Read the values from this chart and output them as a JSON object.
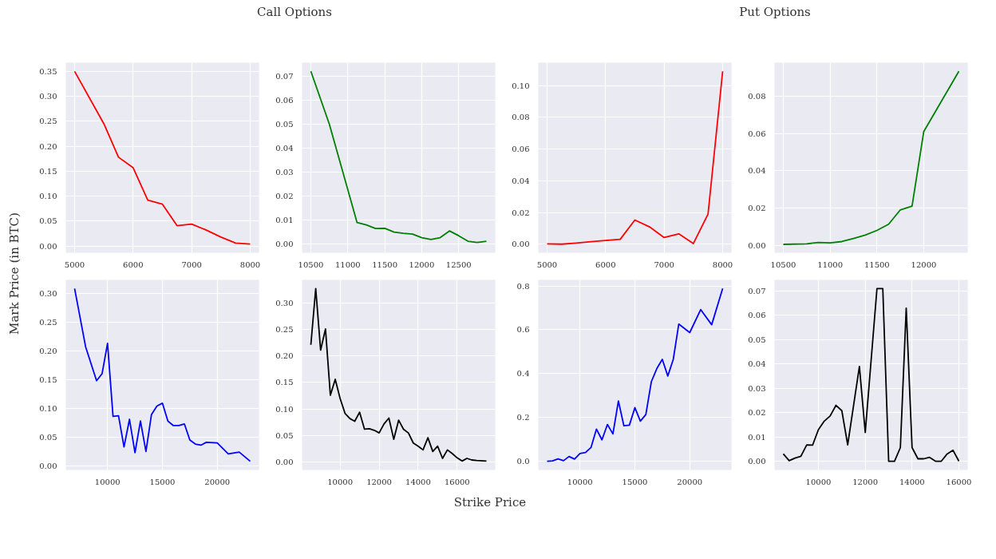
{
  "chart_data": [
    {
      "type": "line",
      "annotations": [
        "Call Options"
      ],
      "ylabel": "Mark Price (in BTC)",
      "grid": true,
      "x": [
        5000,
        5500,
        5750,
        6000,
        6250,
        6500,
        6750,
        7000,
        7250,
        7500,
        7750,
        8000
      ],
      "series": [
        {
          "color": "#ff0000",
          "values": [
            0.35,
            0.245,
            0.178,
            0.157,
            0.092,
            0.084,
            0.041,
            0.044,
            0.032,
            0.018,
            0.006,
            0.004
          ]
        }
      ],
      "xlim": [
        4850,
        8150
      ],
      "xticks": [
        5000,
        6000,
        7000,
        8000
      ],
      "ylim": [
        -0.0133,
        0.3673
      ],
      "yticks": [
        {
          "value": 0,
          "label": "0.00"
        },
        {
          "value": 0.05,
          "label": "0.05"
        },
        {
          "value": 0.1,
          "label": "0.10"
        },
        {
          "value": 0.15,
          "label": "0.15"
        },
        {
          "value": 0.2,
          "label": "0.20"
        },
        {
          "value": 0.25,
          "label": "0.25"
        },
        {
          "value": 0.3,
          "label": "0.30"
        },
        {
          "value": 0.35,
          "label": "0.35"
        }
      ]
    },
    {
      "type": "line",
      "grid": true,
      "x": [
        10500,
        10750,
        11125,
        11250,
        11375,
        11500,
        11625,
        11750,
        11875,
        12000,
        12125,
        12250,
        12375,
        12500,
        12625,
        12750,
        12875
      ],
      "series": [
        {
          "color": "#008000",
          "values": [
            0.072,
            0.05,
            0.009,
            0.008,
            0.0065,
            0.0066,
            0.005,
            0.0045,
            0.0042,
            0.0027,
            0.0019,
            0.0027,
            0.0055,
            0.0035,
            0.0012,
            0.0007,
            0.0012
          ]
        }
      ],
      "xlim": [
        10381,
        12994
      ],
      "xticks": [
        10500,
        11000,
        11500,
        12000,
        12500
      ],
      "ylim": [
        -0.0036,
        0.0756
      ],
      "yticks": [
        {
          "value": 0,
          "label": "0.00"
        },
        {
          "value": 0.01,
          "label": "0.01"
        },
        {
          "value": 0.02,
          "label": "0.02"
        },
        {
          "value": 0.03,
          "label": "0.03"
        },
        {
          "value": 0.04,
          "label": "0.04"
        },
        {
          "value": 0.05,
          "label": "0.05"
        },
        {
          "value": 0.06,
          "label": "0.06"
        },
        {
          "value": 0.07,
          "label": "0.07"
        }
      ]
    },
    {
      "type": "line",
      "annotations": [
        "Put Options"
      ],
      "grid": true,
      "x": [
        5000,
        5250,
        5500,
        5750,
        6000,
        6250,
        6500,
        6750,
        7000,
        7250,
        7500,
        7750,
        8000
      ],
      "series": [
        {
          "color": "#ff0000",
          "values": [
            0.0003,
            0.0001,
            0.0008,
            0.0017,
            0.0024,
            0.0032,
            0.0153,
            0.011,
            0.0043,
            0.0066,
            0.0005,
            0.019,
            0.109
          ]
        }
      ],
      "xlim": [
        4850,
        8150
      ],
      "xticks": [
        5000,
        6000,
        7000,
        8000
      ],
      "ylim": [
        -0.0053,
        0.1144
      ],
      "yticks": [
        {
          "value": 0,
          "label": "0.00"
        },
        {
          "value": 0.02,
          "label": "0.02"
        },
        {
          "value": 0.04,
          "label": "0.04"
        },
        {
          "value": 0.06,
          "label": "0.06"
        },
        {
          "value": 0.08,
          "label": "0.08"
        },
        {
          "value": 0.1,
          "label": "0.10"
        }
      ]
    },
    {
      "type": "line",
      "grid": true,
      "x": [
        10500,
        10750,
        10875,
        11000,
        11125,
        11250,
        11375,
        11500,
        11625,
        11750,
        11875,
        12000,
        12375
      ],
      "series": [
        {
          "color": "#008000",
          "values": [
            0.0005,
            0.0008,
            0.0015,
            0.0013,
            0.002,
            0.0037,
            0.0055,
            0.008,
            0.0113,
            0.019,
            0.021,
            0.061,
            0.0933
          ]
        }
      ],
      "xlim": [
        10406,
        12469
      ],
      "xticks": [
        10500,
        11000,
        11500,
        12000
      ],
      "ylim": [
        -0.004,
        0.0979
      ],
      "yticks": [
        {
          "value": 0,
          "label": "0.00"
        },
        {
          "value": 0.02,
          "label": "0.02"
        },
        {
          "value": 0.04,
          "label": "0.04"
        },
        {
          "value": 0.06,
          "label": "0.06"
        },
        {
          "value": 0.08,
          "label": "0.08"
        }
      ]
    },
    {
      "type": "line",
      "grid": true,
      "x": [
        7000,
        8000,
        9000,
        9500,
        10000,
        10500,
        11000,
        11500,
        12000,
        12500,
        13000,
        13500,
        14000,
        14500,
        15000,
        15500,
        16000,
        16500,
        17000,
        17500,
        18000,
        18500,
        19000,
        20000,
        21000,
        22000,
        23000
      ],
      "series": [
        {
          "color": "#0000ff",
          "values": [
            0.308,
            0.207,
            0.148,
            0.16,
            0.213,
            0.086,
            0.087,
            0.033,
            0.081,
            0.023,
            0.078,
            0.025,
            0.089,
            0.104,
            0.109,
            0.078,
            0.07,
            0.07,
            0.073,
            0.045,
            0.038,
            0.036,
            0.041,
            0.04,
            0.021,
            0.024,
            0.008
          ]
        }
      ],
      "xlim": [
        6200,
        23800
      ],
      "xticks": [
        10000,
        15000,
        20000
      ],
      "ylim": [
        -0.007,
        0.323
      ],
      "yticks": [
        {
          "value": 0,
          "label": "0.00"
        },
        {
          "value": 0.05,
          "label": "0.05"
        },
        {
          "value": 0.1,
          "label": "0.10"
        },
        {
          "value": 0.15,
          "label": "0.15"
        },
        {
          "value": 0.2,
          "label": "0.20"
        },
        {
          "value": 0.25,
          "label": "0.25"
        },
        {
          "value": 0.3,
          "label": "0.30"
        }
      ]
    },
    {
      "type": "line",
      "xlabel": "Strike Price",
      "grid": true,
      "x": [
        8500,
        8750,
        9000,
        9250,
        9500,
        9750,
        10000,
        10250,
        10500,
        10750,
        11000,
        11250,
        11500,
        11750,
        12000,
        12250,
        12500,
        12750,
        13000,
        13250,
        13500,
        13750,
        14000,
        14250,
        14500,
        14750,
        15000,
        15250,
        15500,
        15750,
        16000,
        16250,
        16500,
        16750,
        17000,
        17500
      ],
      "series": [
        {
          "color": "#000000",
          "values": [
            0.221,
            0.327,
            0.211,
            0.251,
            0.126,
            0.156,
            0.12,
            0.092,
            0.082,
            0.077,
            0.094,
            0.062,
            0.063,
            0.06,
            0.055,
            0.072,
            0.083,
            0.043,
            0.079,
            0.062,
            0.055,
            0.036,
            0.03,
            0.023,
            0.046,
            0.02,
            0.03,
            0.007,
            0.023,
            0.016,
            0.008,
            0.002,
            0.007,
            0.004,
            0.003,
            0.002
          ]
        }
      ],
      "xlim": [
        8050,
        17950
      ],
      "xticks": [
        10000,
        12000,
        14000,
        16000
      ],
      "ylim": [
        -0.0148,
        0.3433
      ],
      "yticks": [
        {
          "value": 0,
          "label": "0.00"
        },
        {
          "value": 0.05,
          "label": "0.05"
        },
        {
          "value": 0.1,
          "label": "0.10"
        },
        {
          "value": 0.15,
          "label": "0.15"
        },
        {
          "value": 0.2,
          "label": "0.20"
        },
        {
          "value": 0.25,
          "label": "0.25"
        },
        {
          "value": 0.3,
          "label": "0.30"
        }
      ]
    },
    {
      "type": "line",
      "grid": true,
      "x": [
        7000,
        7500,
        8000,
        8500,
        9000,
        9500,
        10000,
        10500,
        11000,
        11500,
        12000,
        12500,
        13000,
        13500,
        14000,
        14500,
        15000,
        15500,
        16000,
        16500,
        17000,
        17500,
        18000,
        18500,
        19000,
        20000,
        21000,
        22000,
        23000
      ],
      "series": [
        {
          "color": "#0000ff",
          "values": [
            0.0,
            0.002,
            0.011,
            0.003,
            0.022,
            0.01,
            0.036,
            0.04,
            0.063,
            0.147,
            0.098,
            0.168,
            0.125,
            0.275,
            0.162,
            0.165,
            0.245,
            0.183,
            0.213,
            0.363,
            0.423,
            0.465,
            0.389,
            0.465,
            0.626,
            0.587,
            0.692,
            0.623,
            0.788
          ]
        }
      ],
      "xlim": [
        6200,
        23800
      ],
      "xticks": [
        10000,
        15000,
        20000
      ],
      "ylim": [
        -0.0394,
        0.8274
      ],
      "yticks": [
        {
          "value": 0,
          "label": "0.0"
        },
        {
          "value": 0.2,
          "label": "0.2"
        },
        {
          "value": 0.4,
          "label": "0.4"
        },
        {
          "value": 0.6,
          "label": "0.6"
        },
        {
          "value": 0.8,
          "label": "0.8"
        }
      ]
    },
    {
      "type": "line",
      "grid": true,
      "x": [
        8500,
        8750,
        9000,
        9250,
        9500,
        9750,
        10000,
        10250,
        10500,
        10750,
        11000,
        11250,
        11750,
        12000,
        12500,
        12750,
        13000,
        13250,
        13500,
        13750,
        14000,
        14250,
        14500,
        14750,
        15000,
        15250,
        15500,
        15750,
        16000
      ],
      "series": [
        {
          "color": "#000000",
          "values": [
            0.003,
            0.0002,
            0.0013,
            0.002,
            0.0067,
            0.0066,
            0.013,
            0.0165,
            0.0186,
            0.023,
            0.0208,
            0.0067,
            0.039,
            0.0118,
            0.071,
            0.071,
            0.0,
            0.0,
            0.0056,
            0.063,
            0.0056,
            0.001,
            0.001,
            0.0016,
            0.0,
            0.0,
            0.003,
            0.0045,
            0.0
          ]
        }
      ],
      "xlim": [
        8125,
        16375
      ],
      "xticks": [
        10000,
        12000,
        14000,
        16000
      ],
      "ylim": [
        -0.0036,
        0.0746
      ],
      "yticks": [
        {
          "value": 0,
          "label": "0.00"
        },
        {
          "value": 0.01,
          "label": "0.01"
        },
        {
          "value": 0.02,
          "label": "0.02"
        },
        {
          "value": 0.03,
          "label": "0.03"
        },
        {
          "value": 0.04,
          "label": "0.04"
        },
        {
          "value": 0.05,
          "label": "0.05"
        },
        {
          "value": 0.06,
          "label": "0.06"
        },
        {
          "value": 0.07,
          "label": "0.07"
        }
      ]
    }
  ]
}
